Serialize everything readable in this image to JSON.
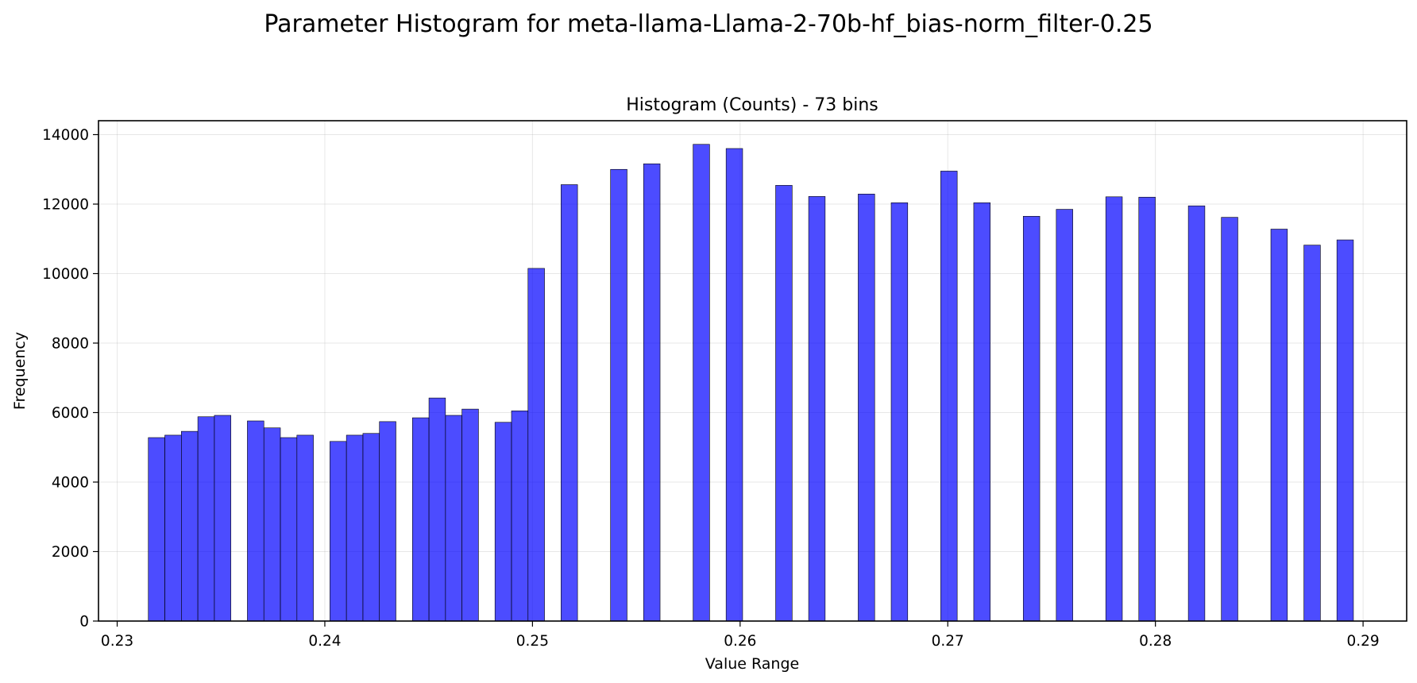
{
  "figure": {
    "title": "Parameter Histogram for meta-llama-Llama-2-70b-hf_bias-norm_filter-0.25"
  },
  "chart_data": {
    "type": "bar",
    "title": "Histogram (Counts) - 73 bins",
    "xlabel": "Value Range",
    "ylabel": "Frequency",
    "xlim": [
      0.2291,
      0.2921
    ],
    "ylim": [
      0,
      14400
    ],
    "xticks": [
      0.23,
      0.24,
      0.25,
      0.26,
      0.27,
      0.28,
      0.29
    ],
    "xtick_labels": [
      "0.23",
      "0.24",
      "0.25",
      "0.26",
      "0.27",
      "0.28",
      "0.29"
    ],
    "yticks": [
      0,
      2000,
      4000,
      6000,
      8000,
      10000,
      12000,
      14000
    ],
    "ytick_labels": [
      "0",
      "2000",
      "4000",
      "6000",
      "8000",
      "10000",
      "12000",
      "14000"
    ],
    "grid": true,
    "bar_color": "#0000ff",
    "bin_start": 0.2315,
    "bin_width": 0.000795,
    "bins": 73,
    "values": [
      5280,
      5350,
      5460,
      5880,
      5920,
      0,
      5760,
      5560,
      5280,
      5350,
      0,
      5170,
      5350,
      5400,
      5740,
      0,
      5850,
      6420,
      5920,
      6100,
      0,
      5720,
      6050,
      10150,
      0,
      12560,
      0,
      0,
      13000,
      0,
      13160,
      0,
      0,
      13720,
      0,
      13600,
      0,
      0,
      12540,
      0,
      12220,
      0,
      0,
      12290,
      0,
      12040,
      0,
      0,
      12950,
      0,
      12040,
      0,
      0,
      11650,
      0,
      11850,
      0,
      0,
      12210,
      0,
      12200,
      0,
      0,
      11950,
      0,
      11620,
      0,
      0,
      11280,
      0,
      10820,
      0,
      10970
    ]
  }
}
